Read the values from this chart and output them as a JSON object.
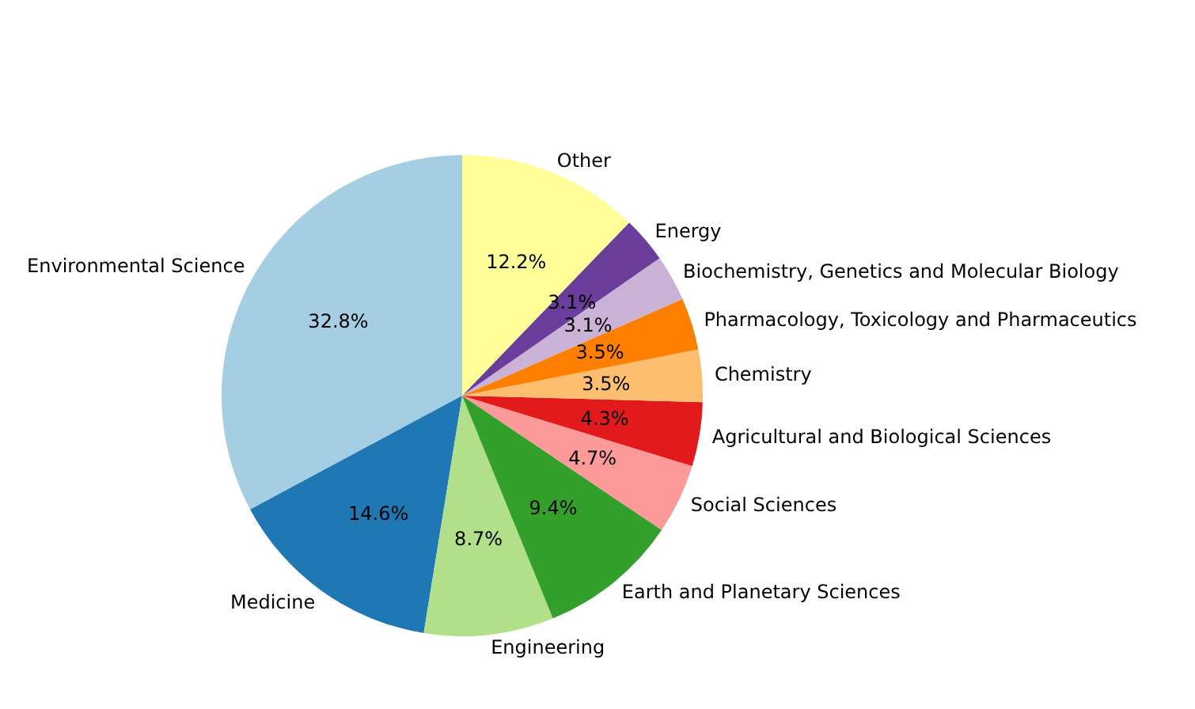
{
  "chart_data": {
    "type": "pie",
    "categories": [
      "Environmental Science",
      "Medicine",
      "Engineering",
      "Earth and Planetary Sciences",
      "Social Sciences",
      "Agricultural and Biological Sciences",
      "Chemistry",
      "Pharmacology, Toxicology and Pharmaceutics",
      "Biochemistry, Genetics and Molecular Biology",
      "Energy",
      "Other"
    ],
    "values": [
      32.8,
      14.6,
      8.7,
      9.4,
      4.7,
      4.3,
      3.5,
      3.5,
      3.1,
      3.1,
      12.2
    ],
    "value_labels": [
      "32.8%",
      "14.6%",
      "8.7%",
      "9.4%",
      "4.7%",
      "4.3%",
      "3.5%",
      "3.5%",
      "3.1%",
      "3.1%",
      "12.2%"
    ],
    "colors": [
      "#a6cee3",
      "#1f78b4",
      "#b2df8a",
      "#33a02c",
      "#fb9a99",
      "#e31a1c",
      "#fdbf6f",
      "#ff7f00",
      "#cab2d6",
      "#6a3d9a",
      "#ffff99"
    ]
  }
}
